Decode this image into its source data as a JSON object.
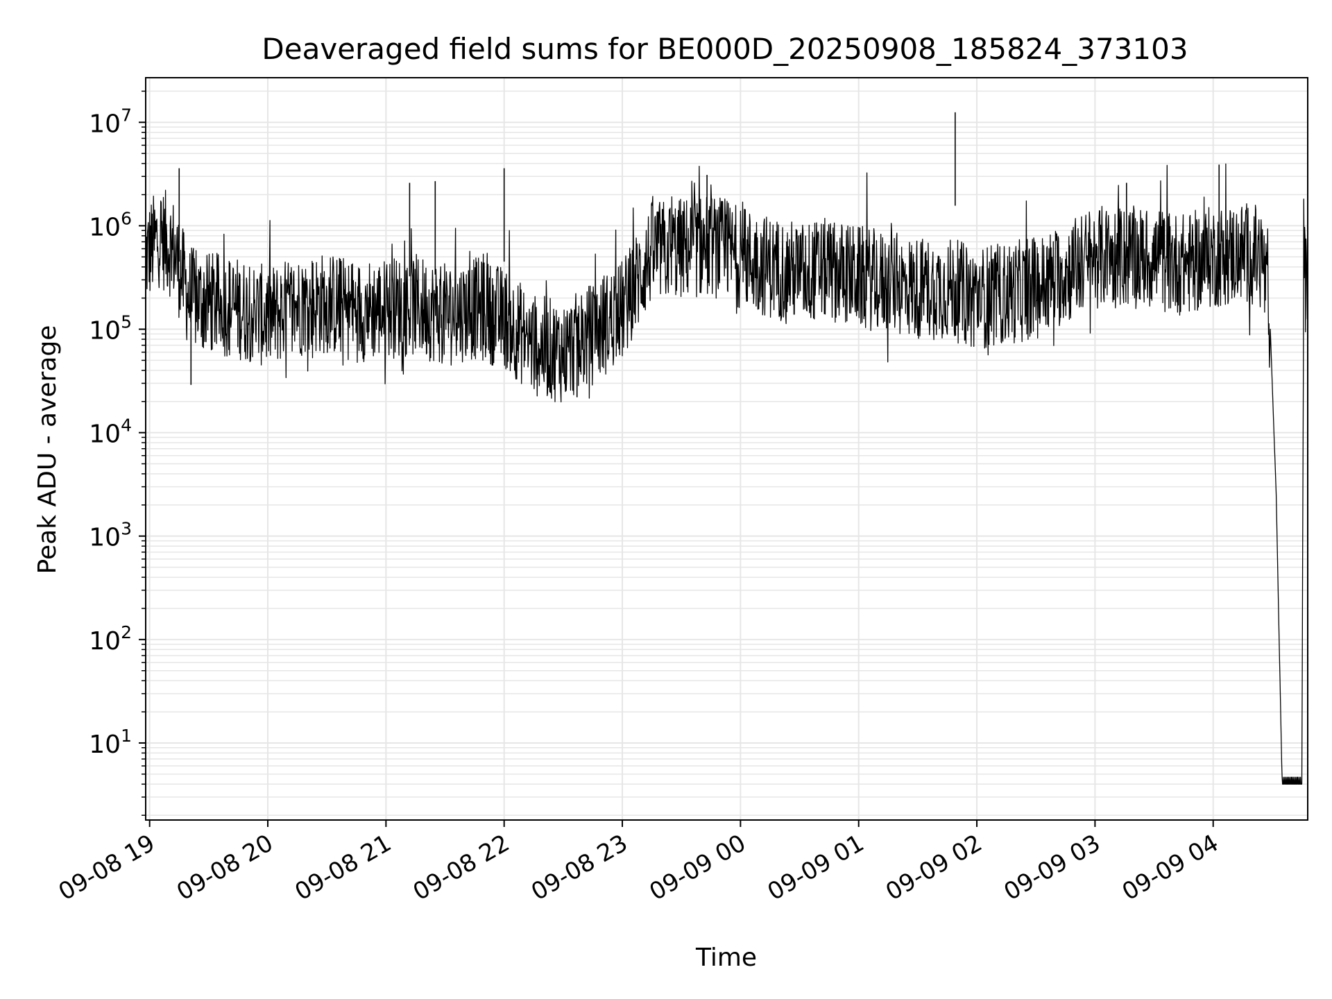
{
  "chart_data": {
    "type": "line",
    "title": "Deaveraged field sums for BE000D_20250908_185824_373103",
    "xlabel": "Time",
    "ylabel": "Peak ADU - average",
    "yscale": "log",
    "grid": true,
    "line_color": "#000000",
    "grid_color": "#e6e6e6",
    "xlim": [
      "2025-09-08 18:58",
      "2025-09-09 04:48"
    ],
    "ylim": [
      1.8,
      27000000
    ],
    "x_ticks": [
      {
        "t": "2025-09-08 19:00",
        "label": "09-08 19"
      },
      {
        "t": "2025-09-08 20:00",
        "label": "09-08 20"
      },
      {
        "t": "2025-09-08 21:00",
        "label": "09-08 21"
      },
      {
        "t": "2025-09-08 22:00",
        "label": "09-08 22"
      },
      {
        "t": "2025-09-08 23:00",
        "label": "09-08 23"
      },
      {
        "t": "2025-09-09 00:00",
        "label": "09-09 00"
      },
      {
        "t": "2025-09-09 01:00",
        "label": "09-09 01"
      },
      {
        "t": "2025-09-09 02:00",
        "label": "09-09 02"
      },
      {
        "t": "2025-09-09 03:00",
        "label": "09-09 03"
      },
      {
        "t": "2025-09-09 04:00",
        "label": "09-09 04"
      }
    ],
    "y_ticks": [
      {
        "value": 10,
        "base": "10",
        "exp": "1"
      },
      {
        "value": 100,
        "base": "10",
        "exp": "2"
      },
      {
        "value": 1000,
        "base": "10",
        "exp": "3"
      },
      {
        "value": 10000,
        "base": "10",
        "exp": "4"
      },
      {
        "value": 100000,
        "base": "10",
        "exp": "5"
      },
      {
        "value": 1000000,
        "base": "10",
        "exp": "6"
      },
      {
        "value": 10000000,
        "base": "10",
        "exp": "7"
      }
    ],
    "series": [
      {
        "x": [
          "2025-09-08 18:58",
          "2025-09-08 19:05",
          "2025-09-08 19:12",
          "2025-09-08 19:20",
          "2025-09-08 19:30",
          "2025-09-08 19:45",
          "2025-09-08 20:00",
          "2025-09-08 20:15",
          "2025-09-08 20:30",
          "2025-09-08 20:45",
          "2025-09-08 21:00",
          "2025-09-08 21:15",
          "2025-09-08 21:30",
          "2025-09-08 21:45",
          "2025-09-08 22:00",
          "2025-09-08 22:15",
          "2025-09-08 22:30",
          "2025-09-08 22:45",
          "2025-09-08 23:00",
          "2025-09-08 23:15",
          "2025-09-08 23:30",
          "2025-09-08 23:45",
          "2025-09-09 00:00",
          "2025-09-09 00:15",
          "2025-09-09 00:30",
          "2025-09-09 00:45",
          "2025-09-09 01:00",
          "2025-09-09 01:15",
          "2025-09-09 01:30",
          "2025-09-09 01:45",
          "2025-09-09 02:00",
          "2025-09-09 02:15",
          "2025-09-09 02:30",
          "2025-09-09 02:45",
          "2025-09-09 03:00",
          "2025-09-09 03:15",
          "2025-09-09 03:30",
          "2025-09-09 03:45",
          "2025-09-09 04:00",
          "2025-09-09 04:15",
          "2025-09-09 04:25",
          "2025-09-09 04:29",
          "2025-09-09 04:32",
          "2025-09-09 04:35",
          "2025-09-09 04:37",
          "2025-09-09 04:40",
          "2025-09-09 04:43",
          "2025-09-09 04:45",
          "2025-09-09 04:46",
          "2025-09-09 04:48"
        ],
        "y": [
          500000,
          800000,
          600000,
          200000,
          180000,
          160000,
          130000,
          170000,
          180000,
          150000,
          160000,
          170000,
          140000,
          160000,
          130000,
          70000,
          60000,
          90000,
          150000,
          550000,
          600000,
          650000,
          500000,
          400000,
          350000,
          380000,
          320000,
          280000,
          250000,
          250000,
          200000,
          220000,
          250000,
          350000,
          500000,
          500000,
          480000,
          420000,
          500000,
          550000,
          500000,
          100000,
          2500,
          4,
          4,
          4,
          4,
          4,
          600000,
          150000
        ]
      }
    ],
    "spikes": [
      {
        "x": "2025-09-08 19:15",
        "y": 3600000
      },
      {
        "x": "2025-09-08 21:12",
        "y": 2600000
      },
      {
        "x": "2025-09-08 21:25",
        "y": 2700000
      },
      {
        "x": "2025-09-08 22:00",
        "y": 3600000
      },
      {
        "x": "2025-09-08 23:43",
        "y": 3100000
      },
      {
        "x": "2025-09-09 01:49",
        "y": 12500000
      },
      {
        "x": "2025-09-09 03:16",
        "y": 2600000
      },
      {
        "x": "2025-09-09 04:03",
        "y": 3900000
      },
      {
        "x": "2025-09-08 22:37",
        "y": 22000
      },
      {
        "x": "2025-09-08 19:21",
        "y": 29000
      }
    ]
  }
}
